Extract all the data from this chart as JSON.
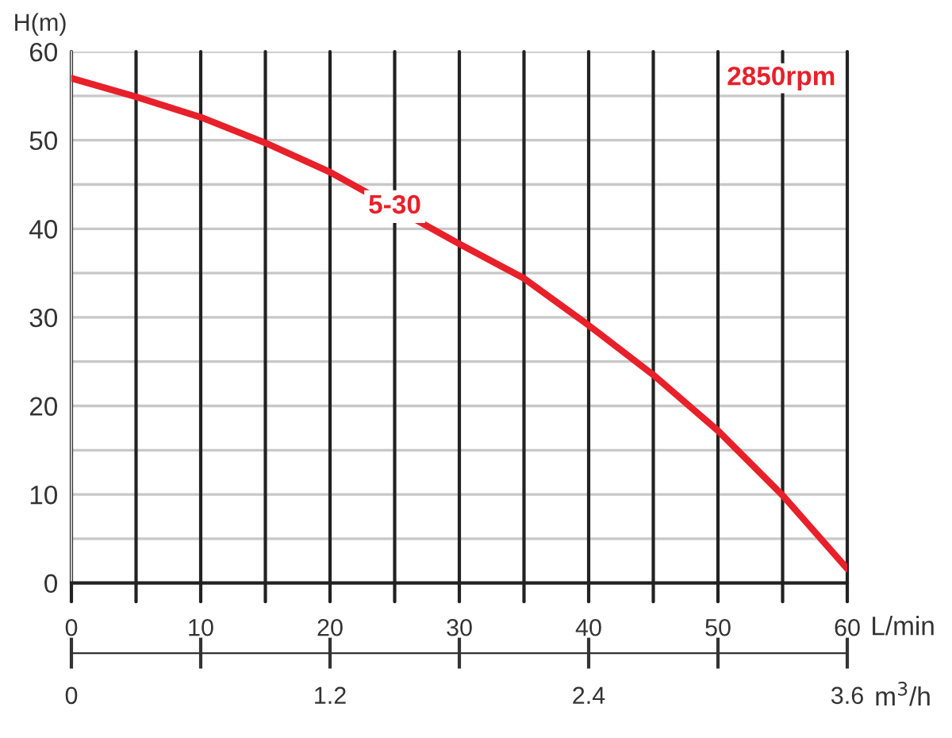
{
  "chart_data": {
    "type": "line",
    "ylabel": "H(m)",
    "xlabel": "L/min",
    "x2label": "m$^{3}$/h",
    "x": [
      0,
      5,
      10,
      15,
      20,
      30,
      35,
      40,
      45,
      50,
      55,
      60
    ],
    "series": [
      {
        "color": "#e8202a",
        "values": [
          57,
          54.9,
          52.6,
          49.7,
          46.4,
          38.3,
          34.4,
          29.1,
          23.5,
          17.2,
          9.9,
          1.6
        ]
      }
    ],
    "xlim": [
      0,
      60
    ],
    "xticks": [
      0,
      {
        "value": 5,
        "label": null
      },
      10,
      {
        "value": 15,
        "label": null
      },
      20,
      {
        "value": 25,
        "label": null
      },
      30,
      {
        "value": 35,
        "label": null
      },
      40,
      {
        "value": 45,
        "label": null
      },
      50,
      {
        "value": 55,
        "label": null
      },
      60
    ],
    "ylim": [
      0,
      60
    ],
    "yticks": [
      0,
      {
        "value": 5,
        "label": null
      },
      10,
      {
        "value": 15,
        "label": null
      },
      20,
      {
        "value": 25,
        "label": null
      },
      30,
      {
        "value": 35,
        "label": null
      },
      40,
      {
        "value": 45,
        "label": null
      },
      50,
      {
        "value": 55,
        "label": null
      },
      60
    ],
    "x2lim": [
      0,
      3.6
    ],
    "x2ticks": [
      0,
      {
        "value": 0.6,
        "label": null
      },
      1.2,
      {
        "value": 1.8,
        "label": null
      },
      2.4,
      {
        "value": 3.0,
        "label": null
      },
      3.6
    ],
    "grid": true,
    "legend": false,
    "marker": "none",
    "line_style": "solid",
    "annotations": [
      {
        "text": "5-30",
        "x": 25,
        "y": 42.5
      },
      "2850rpm"
    ]
  }
}
